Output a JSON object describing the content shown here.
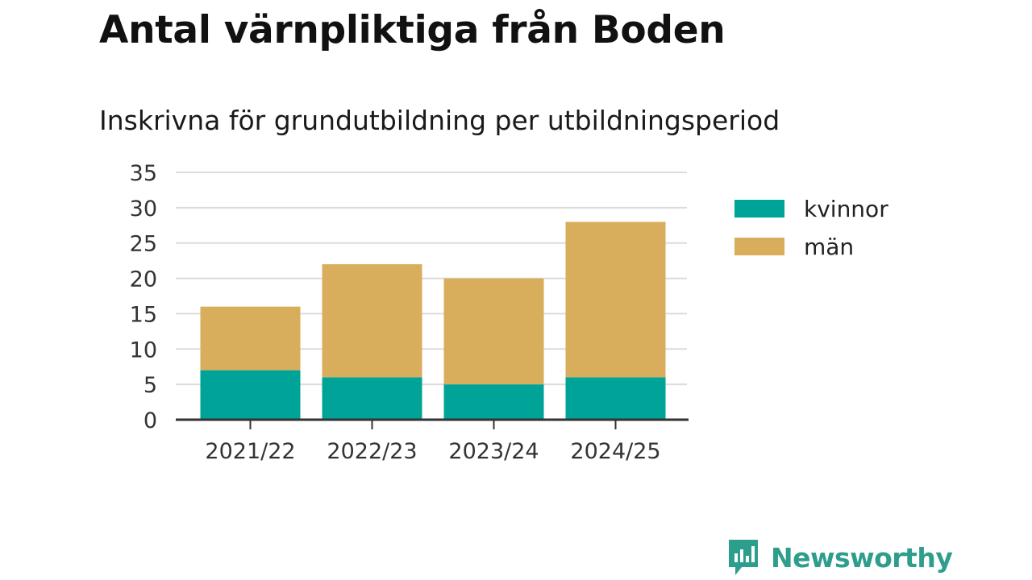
{
  "title": "Antal värnpliktiga från Boden",
  "subtitle": "Inskrivna för grundutbildning per utbildningsperiod",
  "brand": {
    "name": "Newsworthy",
    "color": "#2e9e8c",
    "icon": "bar-chart-speech-bubble-icon"
  },
  "chart_data": {
    "type": "bar",
    "stacked": true,
    "categories": [
      "2021/22",
      "2022/23",
      "2023/24",
      "2024/25"
    ],
    "series": [
      {
        "name": "kvinnor",
        "color": "#00a398",
        "values": [
          7,
          6,
          5,
          6
        ]
      },
      {
        "name": "män",
        "color": "#d8ad5b",
        "values": [
          9,
          16,
          15,
          22
        ]
      }
    ],
    "ylim": [
      0,
      35
    ],
    "yticks": [
      0,
      5,
      10,
      15,
      20,
      25,
      30,
      35
    ],
    "xlabel": "",
    "ylabel": "",
    "grid": true,
    "legend_position": "right"
  }
}
